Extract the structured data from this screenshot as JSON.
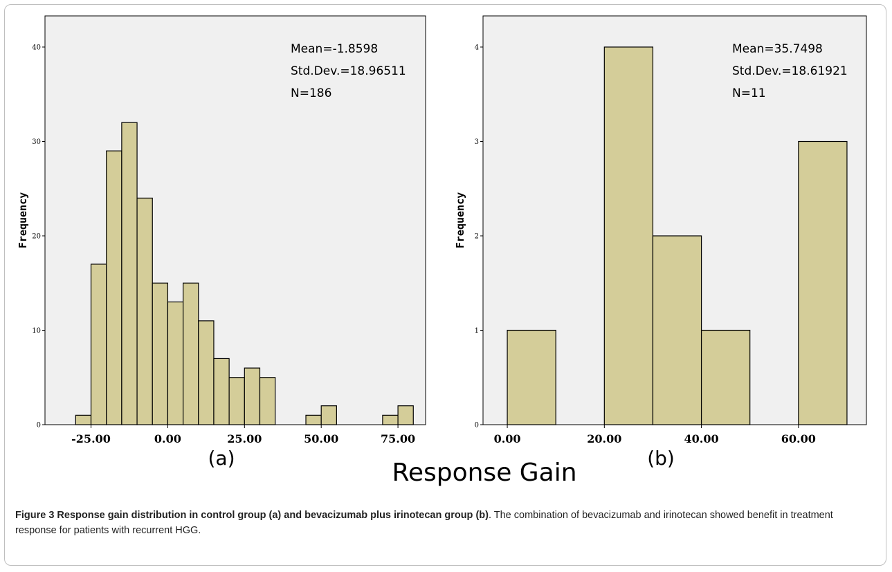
{
  "figure": {
    "xlabel": "Response Gain",
    "caption": {
      "title": "Figure 3 Response gain distribution in control group (a) and bevacizumab plus irinotecan group (b)",
      "text": ". The combination of bevacizumab and irinotecan showed benefit in treatment response for patients with recurrent HGG."
    }
  },
  "chart_data": [
    {
      "type": "bar",
      "panel_label": "(a)",
      "ylabel": "Frequency",
      "xlim": [
        -40,
        84
      ],
      "ylim": [
        0,
        40
      ],
      "yticks": [
        0,
        10,
        20,
        30,
        40
      ],
      "xticks": [
        -25,
        0,
        25,
        50,
        75
      ],
      "xtick_labels": [
        "-25.00",
        "0.00",
        "25.00",
        "50.00",
        "75.00"
      ],
      "bin_width": 5,
      "bin_starts": [
        -30,
        -25,
        -20,
        -15,
        -10,
        -5,
        0,
        5,
        10,
        15,
        20,
        25,
        30,
        35,
        40,
        45,
        50,
        55,
        60,
        65,
        70,
        75
      ],
      "values": [
        1,
        17,
        29,
        32,
        24,
        15,
        13,
        15,
        11,
        7,
        5,
        6,
        5,
        0,
        0,
        1,
        2,
        0,
        0,
        0,
        1,
        2
      ],
      "stats": [
        "Mean=-1.8598",
        "Std.Dev.=18.96511",
        "N=186"
      ]
    },
    {
      "type": "bar",
      "panel_label": "(b)",
      "ylabel": "Frequency",
      "xlim": [
        -5,
        74
      ],
      "ylim": [
        0,
        4
      ],
      "yticks": [
        0,
        1,
        2,
        3,
        4
      ],
      "xticks": [
        0,
        20,
        40,
        60
      ],
      "xtick_labels": [
        "0.00",
        "20.00",
        "40.00",
        "60.00"
      ],
      "bin_width": 10,
      "bin_starts": [
        0,
        10,
        20,
        30,
        40,
        50,
        60
      ],
      "values": [
        1,
        0,
        4,
        2,
        1,
        0,
        3
      ],
      "stats": [
        "Mean=35.7498",
        "Std.Dev.=18.61921",
        "N=11"
      ]
    }
  ]
}
